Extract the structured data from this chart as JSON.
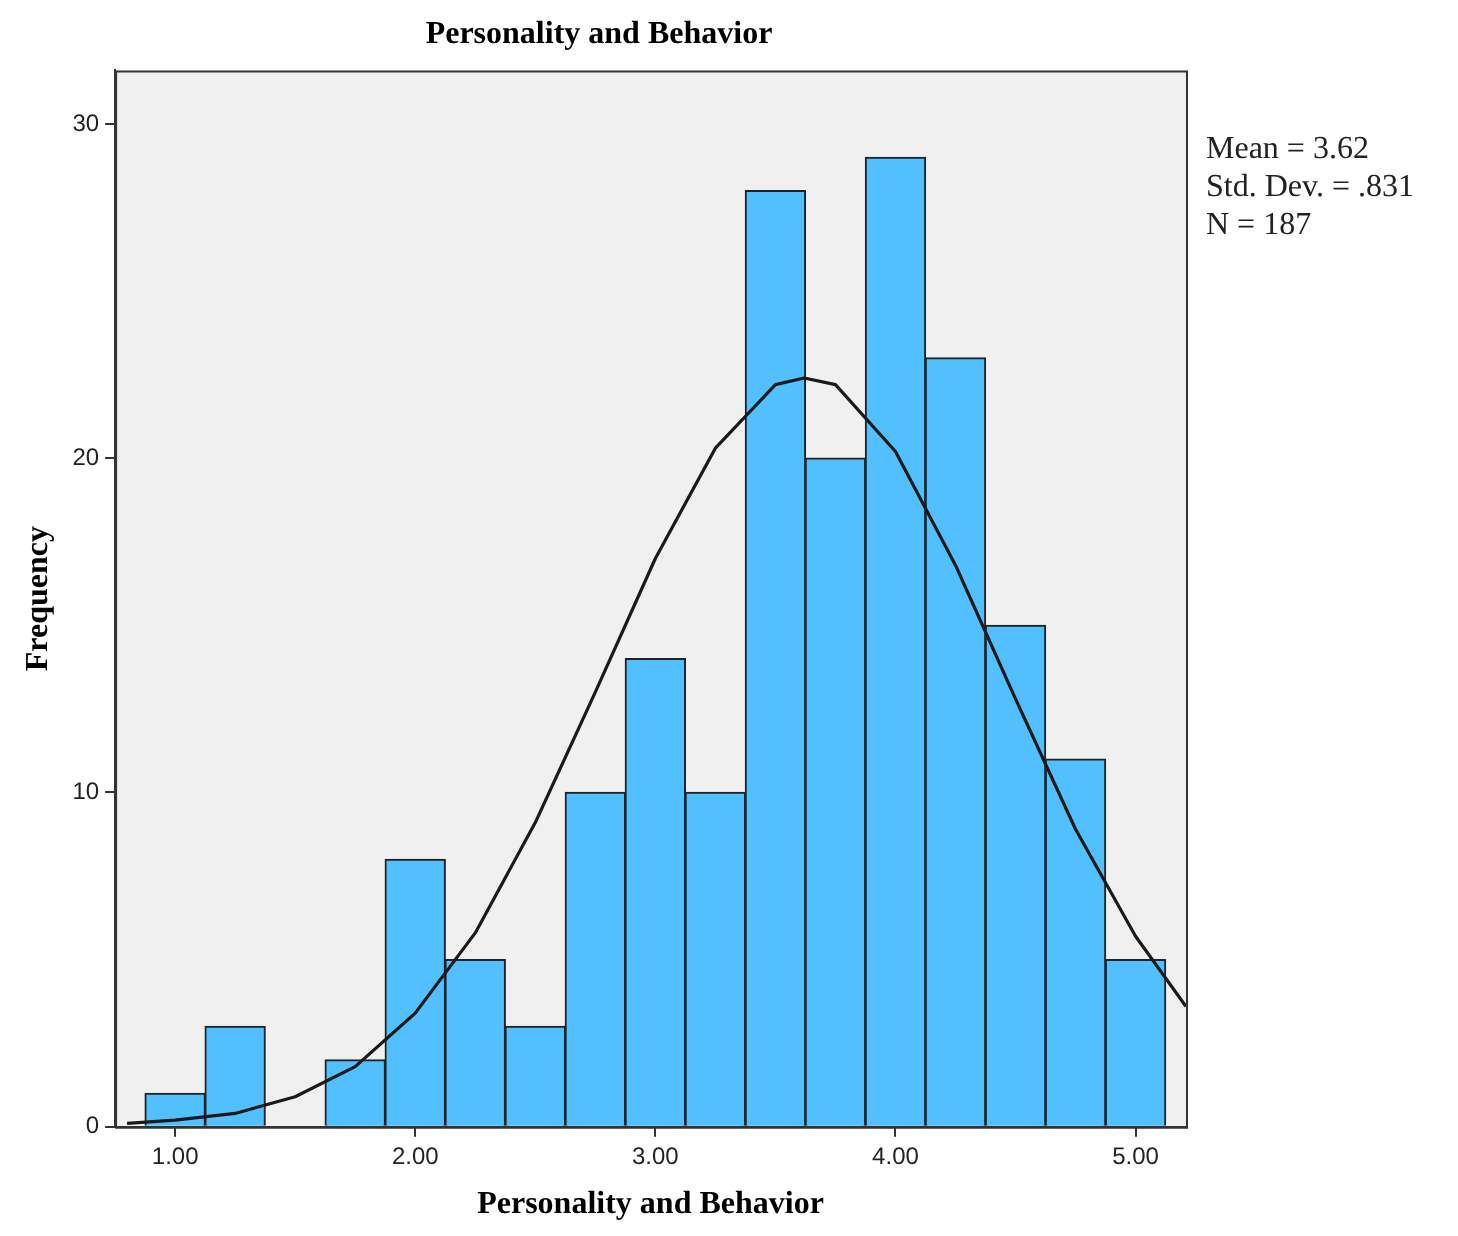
{
  "chart_data": {
    "type": "histogram",
    "title": "Personality and Behavior",
    "xlabel": "Personality and Behavior",
    "ylabel": "Frequency",
    "bins": [
      0.875,
      1.125,
      1.375,
      1.625,
      1.875,
      2.125,
      2.375,
      2.625,
      2.875,
      3.125,
      3.375,
      3.625,
      3.875,
      4.125,
      4.375,
      4.625,
      4.875,
      5.125
    ],
    "values": [
      1,
      3,
      0,
      2,
      8,
      5,
      3,
      10,
      14,
      10,
      28,
      20,
      29,
      23,
      15,
      11,
      5
    ],
    "color": "#52bfff",
    "series": [
      {
        "type": "line",
        "color": "#1a1a1a",
        "x": [
          0.8,
          1.0,
          1.25,
          1.5,
          1.75,
          2.0,
          2.25,
          2.5,
          2.75,
          3.0,
          3.25,
          3.5,
          3.62,
          3.75,
          4.0,
          4.25,
          4.5,
          4.75,
          5.0,
          5.21
        ],
        "values": [
          0.1,
          0.2,
          0.4,
          0.9,
          1.8,
          3.4,
          5.8,
          9.1,
          13.0,
          17.0,
          20.3,
          22.2,
          22.4,
          22.2,
          20.2,
          16.8,
          12.8,
          8.9,
          5.7,
          3.6
        ]
      }
    ],
    "xlim": [
      0.75,
      5.21
    ],
    "xticks": [
      {
        "value": 1,
        "label": "1.00"
      },
      {
        "value": 2,
        "label": "2.00"
      },
      {
        "value": 3,
        "label": "3.00"
      },
      {
        "value": 4,
        "label": "4.00"
      },
      {
        "value": 5,
        "label": "5.00"
      }
    ],
    "ylim": [
      0,
      31.6
    ],
    "yticks": [
      0,
      10,
      20,
      30
    ],
    "grid": false,
    "legend": false,
    "marker": "none",
    "annotations": [
      "Mean = 3.62",
      "Std. Dev. = .831",
      "N = 187"
    ]
  }
}
